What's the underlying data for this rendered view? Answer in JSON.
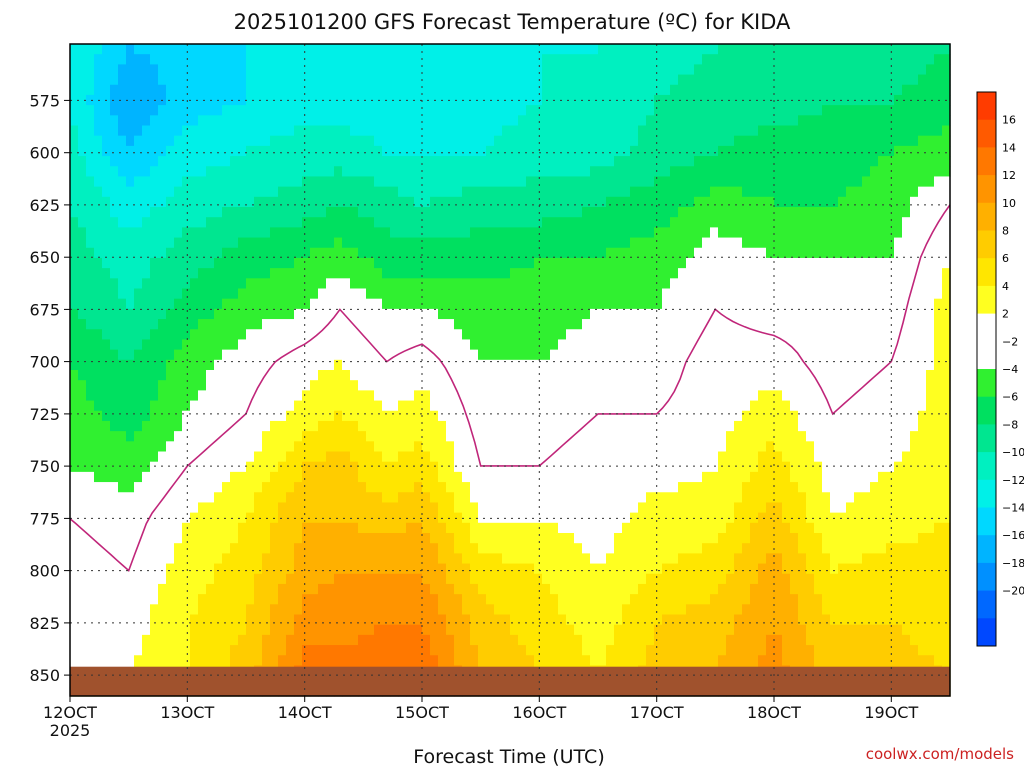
{
  "title": "2025101200 GFS Forecast Temperature (ºC) for KIDA",
  "credit": "coolwx.com/models",
  "chart_data": {
    "type": "heatmap",
    "title": "2025101200 GFS Forecast Temperature (ºC) for KIDA",
    "xlabel": "Forecast Time (UTC)",
    "ylabel": "",
    "x_ticks": [
      {
        "day": 12,
        "label": "12OCT",
        "sub": "2025"
      },
      {
        "day": 13,
        "label": "13OCT"
      },
      {
        "day": 14,
        "label": "14OCT"
      },
      {
        "day": 15,
        "label": "15OCT"
      },
      {
        "day": 16,
        "label": "16OCT"
      },
      {
        "day": 17,
        "label": "17OCT"
      },
      {
        "day": 18,
        "label": "18OCT"
      },
      {
        "day": 19,
        "label": "19OCT"
      }
    ],
    "xlim_days": [
      12.0,
      19.5
    ],
    "y_ticks": [
      575,
      600,
      625,
      650,
      675,
      700,
      725,
      750,
      775,
      800,
      825,
      850
    ],
    "ylim_hpa": [
      548,
      860
    ],
    "ground_hpa": 846,
    "colorbar_ticks": [
      "16",
      "14",
      "12",
      "10",
      "8",
      "6",
      "4",
      "2",
      "−2",
      "−4",
      "−6",
      "−8",
      "−10",
      "−12",
      "−14",
      "−16",
      "−18",
      "−20"
    ],
    "levels": [
      -22,
      -20,
      -18,
      -16,
      -14,
      -12,
      -10,
      -8,
      -6,
      -4,
      -2,
      0,
      2,
      4,
      6,
      8,
      10,
      12,
      14,
      16,
      18
    ],
    "fill_colors": [
      "#0048ff",
      "#0068ff",
      "#0090ff",
      "#00b4ff",
      "#00d8ff",
      "#00f0e8",
      "#00f0c0",
      "#00e690",
      "#00e060",
      "#30f030",
      "#ffffff",
      "#ffffff",
      "#ffff20",
      "#ffe600",
      "#ffcc00",
      "#ffb000",
      "#ff9400",
      "#ff7800",
      "#ff5a00",
      "#ff3c00"
    ],
    "ground_color": "#a0522d",
    "freezing_line_color": "#c0267a",
    "temperature_profiles": {
      "days": [
        12.0,
        12.5,
        13.0,
        13.5,
        14.0,
        14.3,
        14.7,
        15.0,
        15.5,
        16.0,
        16.5,
        17.0,
        17.5,
        18.0,
        18.5,
        19.0,
        19.5
      ],
      "pressure_levels": [
        550,
        575,
        600,
        625,
        650,
        675,
        700,
        725,
        750,
        775,
        800,
        825,
        850
      ],
      "temps": [
        [
          -10,
          -14,
          -13,
          -12,
          -11,
          -11,
          -12,
          -12,
          -11,
          -10,
          -10,
          -9,
          -8,
          -8,
          -7,
          -7,
          -6
        ],
        [
          -10,
          -16,
          -13,
          -12,
          -11,
          -11,
          -11,
          -11,
          -11,
          -10,
          -10,
          -8,
          -7,
          -7,
          -6,
          -6,
          -5
        ],
        [
          -9,
          -14,
          -11,
          -10,
          -9,
          -9,
          -10,
          -10,
          -10,
          -9,
          -9,
          -7,
          -6,
          -5,
          -5,
          -4,
          -3
        ],
        [
          -8,
          -11,
          -9,
          -8,
          -7,
          -6,
          -7,
          -8,
          -7,
          -7,
          -6,
          -5,
          -3,
          -4,
          -4,
          -3,
          0
        ],
        [
          -7,
          -9,
          -7,
          -5,
          -4,
          -3,
          -5,
          -5,
          -5,
          -4,
          -4,
          -3,
          -1,
          -2,
          -2,
          -2,
          2
        ],
        [
          -6,
          -8,
          -5,
          -3,
          -2,
          0,
          -2,
          -2,
          -3,
          -3,
          -2,
          -2,
          0,
          -1,
          -1,
          -1,
          3
        ],
        [
          -4,
          -6,
          -3,
          -1,
          1,
          2,
          0,
          1,
          -2,
          -2,
          -1,
          -1,
          1,
          1,
          -1,
          0,
          3
        ],
        [
          -3,
          -5,
          -2,
          0,
          3,
          4,
          2,
          3,
          -1,
          -1,
          0,
          0,
          1,
          3,
          0,
          1,
          3
        ],
        [
          -2,
          -3,
          0,
          2,
          6,
          7,
          4,
          5,
          0,
          0,
          1,
          1,
          2,
          5,
          1,
          2,
          3
        ],
        [
          0,
          -1,
          2,
          4,
          8,
          8,
          7,
          8,
          2,
          2,
          1,
          3,
          3,
          7,
          2,
          3,
          4
        ],
        [
          1,
          0,
          3,
          5,
          9,
          10,
          10,
          10,
          5,
          4,
          2,
          4,
          5,
          9,
          4,
          5,
          5
        ],
        [
          2,
          1,
          4,
          6,
          11,
          11,
          12,
          12,
          7,
          5,
          3,
          6,
          7,
          10,
          6,
          6,
          5
        ],
        [
          2,
          2,
          4,
          7,
          13,
          13,
          14,
          14,
          8,
          6,
          4,
          7,
          8,
          11,
          7,
          7,
          6
        ]
      ]
    }
  }
}
